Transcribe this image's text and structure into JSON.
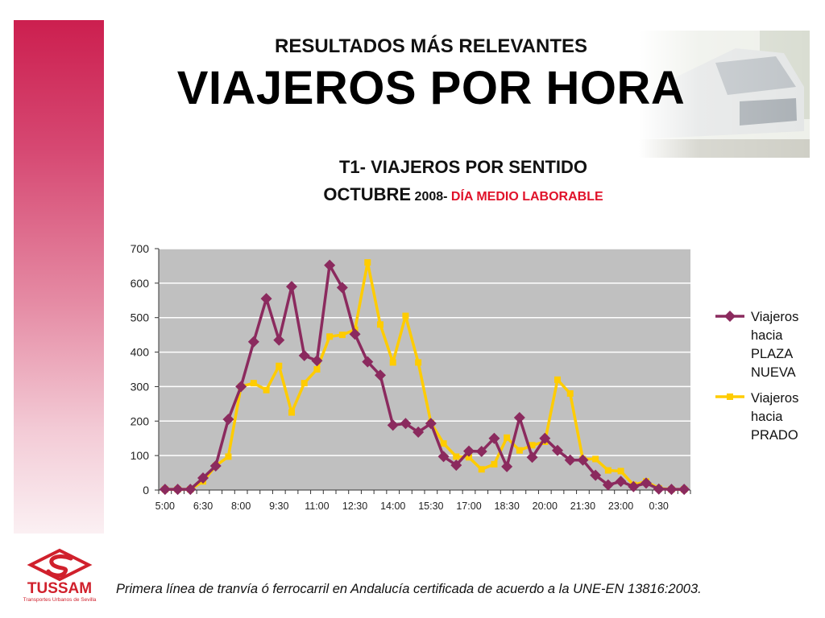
{
  "header": {
    "subtitle": "RESULTADOS MÁS RELEVANTES",
    "title": "VIAJEROS POR HORA"
  },
  "chart_titles": {
    "line1": "T1-  VIAJEROS  POR SENTIDO",
    "line2_part1": "OCTUBRE",
    "line2_part2": " 2008- ",
    "line2_part3": "DÍA MEDIO LABORABLE"
  },
  "footer": {
    "text": "Primera línea de tranvía ó ferrocarril en Andalucía certificada de acuerdo a la UNE-EN 13816:2003."
  },
  "logo": {
    "name": "TUSSAM",
    "tagline": "Transportes Urbanos de Sevilla",
    "color": "#d0202c"
  },
  "colors": {
    "series_plaza": "#8b2a5e",
    "series_prado": "#ffcc00",
    "plot_bg": "#c0c0c0",
    "accent_red": "#e0122a"
  },
  "chart_data": {
    "type": "line",
    "title": "T1-  VIAJEROS  POR SENTIDO",
    "ylim": [
      0,
      700
    ],
    "yticks": [
      "0",
      "100",
      "200",
      "300",
      "400",
      "500",
      "600",
      "700"
    ],
    "xtick_labels": [
      "5:00",
      "6:30",
      "8:00",
      "9:30",
      "11:00",
      "12:30",
      "14:00",
      "15:30",
      "17:00",
      "18:30",
      "20:00",
      "21:30",
      "23:00",
      "0:30"
    ],
    "grid": "horizontal",
    "legend_position": "right",
    "series": [
      {
        "name": "Viajeros hacia PLAZA NUEVA",
        "legend_lines": [
          "Viajeros",
          "hacia",
          "PLAZA",
          "NUEVA"
        ],
        "marker": "diamond",
        "values": [
          2,
          2,
          2,
          35,
          70,
          205,
          300,
          430,
          555,
          435,
          590,
          390,
          375,
          652,
          587,
          452,
          372,
          333,
          188,
          193,
          168,
          193,
          97,
          72,
          113,
          112,
          150,
          68,
          210,
          95,
          150,
          115,
          87,
          87,
          43,
          15,
          25,
          10,
          20,
          3,
          2,
          2
        ]
      },
      {
        "name": "Viajeros hacia PRADO",
        "legend_lines": [
          "Viajeros",
          "hacia",
          "PRADO"
        ],
        "marker": "square",
        "values": [
          2,
          2,
          2,
          25,
          70,
          97,
          300,
          310,
          290,
          360,
          225,
          310,
          350,
          445,
          450,
          465,
          660,
          480,
          370,
          505,
          370,
          195,
          135,
          97,
          95,
          60,
          75,
          152,
          115,
          130,
          140,
          320,
          280,
          90,
          90,
          57,
          55,
          15,
          25,
          5,
          2,
          2
        ]
      }
    ]
  }
}
